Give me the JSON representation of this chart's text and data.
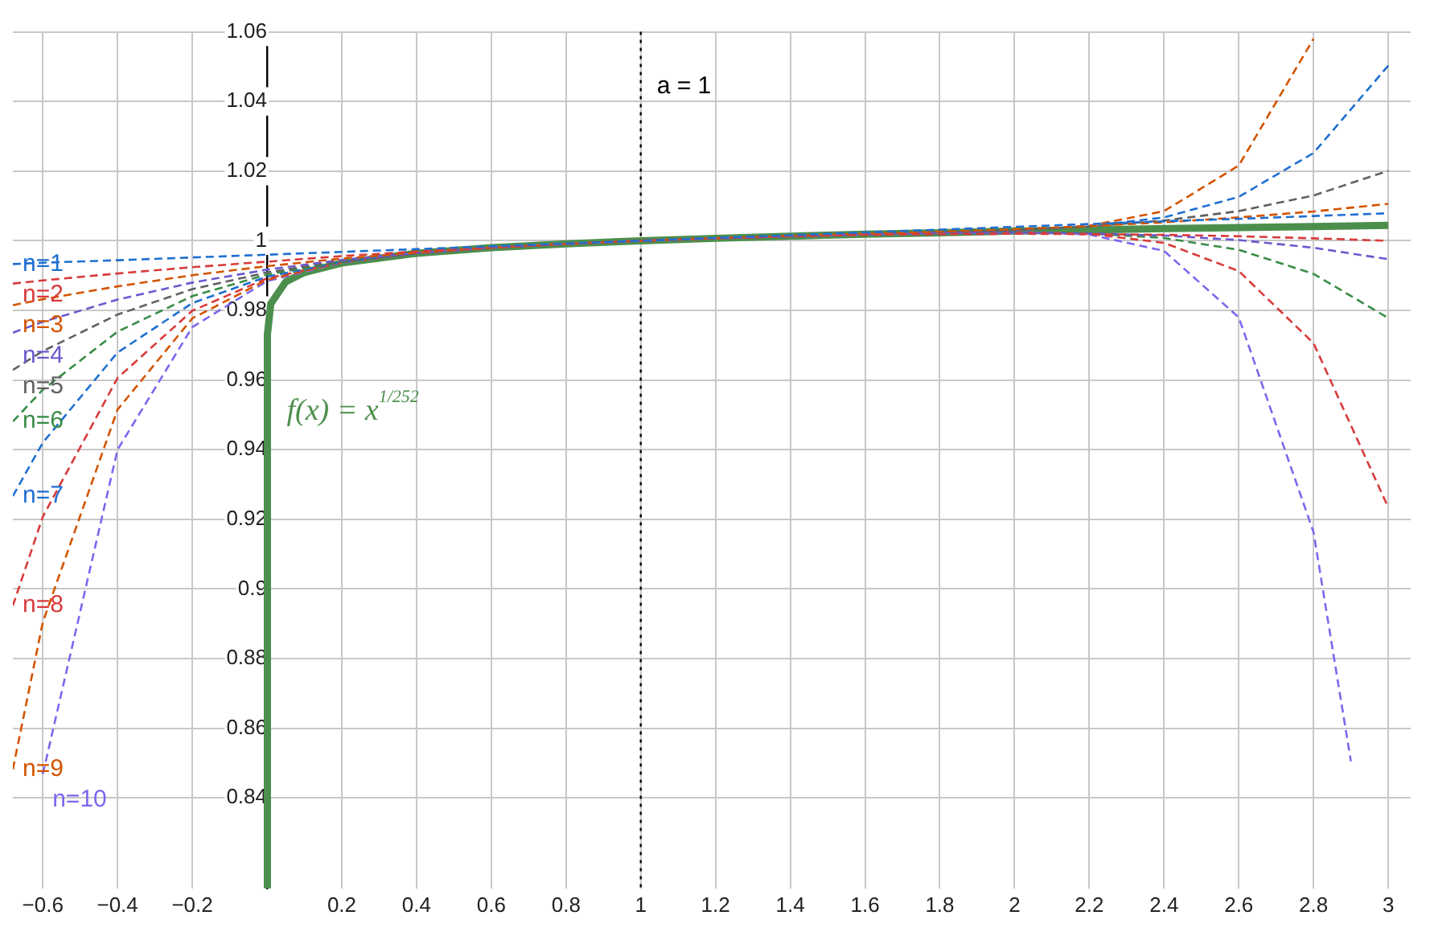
{
  "chart_data": {
    "type": "line",
    "x": [
      -0.68,
      -0.6,
      -0.4,
      -0.2,
      0,
      0.2,
      0.4,
      0.6,
      0.8,
      1,
      1.2,
      1.4,
      1.6,
      1.8,
      2,
      2.2,
      2.4,
      2.6,
      2.8,
      3
    ],
    "xlim": [
      -0.68,
      3.06
    ],
    "ylim": [
      0.814,
      1.06
    ],
    "xticks": [
      {
        "value": -0.6,
        "label": "−0.6"
      },
      {
        "value": -0.4,
        "label": "−0.4"
      },
      {
        "value": -0.2,
        "label": "−0.2"
      },
      {
        "value": 0,
        "label": null
      },
      0.2,
      0.4,
      0.6,
      0.8,
      1,
      1.2,
      1.4,
      1.6,
      1.8,
      2,
      2.2,
      2.4,
      2.6,
      2.8,
      3
    ],
    "yticks": [
      0.84,
      0.86,
      0.88,
      0.9,
      0.92,
      0.94,
      0.96,
      0.98,
      1,
      1.02,
      1.04,
      1.06
    ],
    "grid": true,
    "marker": "none",
    "line_style": "dashed",
    "ref_lines": [
      {
        "axis": "x",
        "value": 1,
        "label": "a = 1",
        "color": "#000000",
        "line_style": "dotted"
      }
    ],
    "series": [
      {
        "name": "f(x) = x$^{1/252}$",
        "color": "#4c8f4c",
        "line_style": "solid",
        "x": [
          0,
          0.001,
          0.01,
          0.05,
          0.1,
          0.2,
          0.4,
          0.6,
          0.8,
          1,
          1.2,
          1.4,
          1.6,
          1.8,
          2,
          2.2,
          2.4,
          2.6,
          2.8,
          3
        ],
        "values": [
          0.814,
          0.973,
          0.9819,
          0.9882,
          0.9909,
          0.9936,
          0.9964,
          0.998,
          0.9991,
          1,
          1.0007,
          1.0013,
          1.0019,
          1.0023,
          1.0028,
          1.0031,
          1.0035,
          1.0038,
          1.0041,
          1.0044
        ]
      },
      {
        "name": "n=1",
        "color": "#1f6fd1",
        "values": [
          0.9933,
          0.9937,
          0.9944,
          0.9952,
          0.996,
          0.9968,
          0.9976,
          0.9984,
          0.9992,
          1,
          1.0008,
          1.0016,
          1.0024,
          1.0032,
          1.004,
          1.0048,
          1.0056,
          1.0063,
          1.0071,
          1.0079
        ]
      },
      {
        "name": "n=2",
        "color": "#d83b3b",
        "values": [
          0.9877,
          0.9886,
          0.9906,
          0.9924,
          0.994,
          0.9956,
          0.9969,
          0.9981,
          0.9991,
          1,
          1.0007,
          1.0013,
          1.0017,
          1.0019,
          1.002,
          1.0019,
          1.0017,
          1.0013,
          1.0007,
          1.0
        ]
      },
      {
        "name": "n=3",
        "color": "#d35400",
        "values": [
          0.9815,
          0.9832,
          0.9869,
          0.9901,
          0.9927,
          0.9949,
          0.9966,
          0.998,
          0.9991,
          1,
          1.0007,
          1.0014,
          1.002,
          1.0026,
          1.0033,
          1.0042,
          1.0053,
          1.0067,
          1.0084,
          1.0106
        ]
      },
      {
        "name": "n=4",
        "color": "#6a5acd",
        "values": [
          0.9736,
          0.9767,
          0.9831,
          0.988,
          0.9917,
          0.9945,
          0.9965,
          0.998,
          0.9991,
          1,
          1.0007,
          1.0013,
          1.0018,
          1.0022,
          1.0023,
          1.0021,
          1.0015,
          1.0002,
          0.998,
          0.9947
        ]
      },
      {
        "name": "n=5",
        "color": "#616161",
        "values": [
          0.9629,
          0.9683,
          0.9788,
          0.9861,
          0.9909,
          0.9942,
          0.9964,
          0.998,
          0.9991,
          1,
          1.0007,
          1.0013,
          1.0019,
          1.0024,
          1.0031,
          1.0041,
          1.0058,
          1.0085,
          1.013,
          1.0201
        ]
      },
      {
        "name": "n=6",
        "color": "#388c46",
        "values": [
          0.9481,
          0.9572,
          0.9739,
          0.9841,
          0.9903,
          0.994,
          0.9964,
          0.998,
          0.9991,
          1,
          1.0007,
          1.0013,
          1.0019,
          1.0023,
          1.0024,
          1.0021,
          1.0008,
          0.9974,
          0.9905,
          0.9778
        ]
      },
      {
        "name": "n=7",
        "color": "#1f6fd1",
        "values": [
          0.9267,
          0.942,
          0.9679,
          0.9821,
          0.9897,
          0.9939,
          0.9964,
          0.998,
          0.9991,
          1,
          1.0007,
          1.0013,
          1.0019,
          1.0024,
          1.003,
          1.0042,
          1.0067,
          1.0126,
          1.0252,
          1.0503
        ]
      },
      {
        "name": "n=8",
        "color": "#d83b3b",
        "values": [
          0.8952,
          0.9207,
          0.9606,
          0.9799,
          0.9892,
          0.9938,
          0.9964,
          0.998,
          0.9991,
          1,
          1.0007,
          1.0013,
          1.0019,
          1.0023,
          1.0025,
          1.002,
          0.9994,
          0.9913,
          0.9706,
          0.9234
        ]
      },
      {
        "name": "n=9",
        "color": "#d35400",
        "values": [
          0.8482,
          0.8904,
          0.9515,
          0.9777,
          0.9888,
          0.9938,
          0.9964,
          0.998,
          0.9991,
          1,
          1.0007,
          1.0013,
          1.0019,
          1.0024,
          1.003,
          1.0043,
          1.0085,
          1.0216,
          1.058,
          null
        ]
      },
      {
        "name": "n=10",
        "color": "#7b68ee",
        "x": [
          -0.6,
          -0.4,
          -0.2,
          0,
          0.2,
          0.4,
          0.6,
          0.8,
          1,
          1.2,
          1.4,
          1.6,
          1.8,
          2,
          2.2,
          2.4,
          2.6,
          2.8,
          2.9
        ],
        "values": [
          0.8468,
          0.94,
          0.9752,
          0.9884,
          0.9937,
          0.9964,
          0.998,
          0.9991,
          1,
          1.0007,
          1.0013,
          1.0019,
          1.0023,
          1.0026,
          1.0018,
          0.9971,
          0.978,
          0.9163,
          0.8505
        ]
      }
    ]
  }
}
